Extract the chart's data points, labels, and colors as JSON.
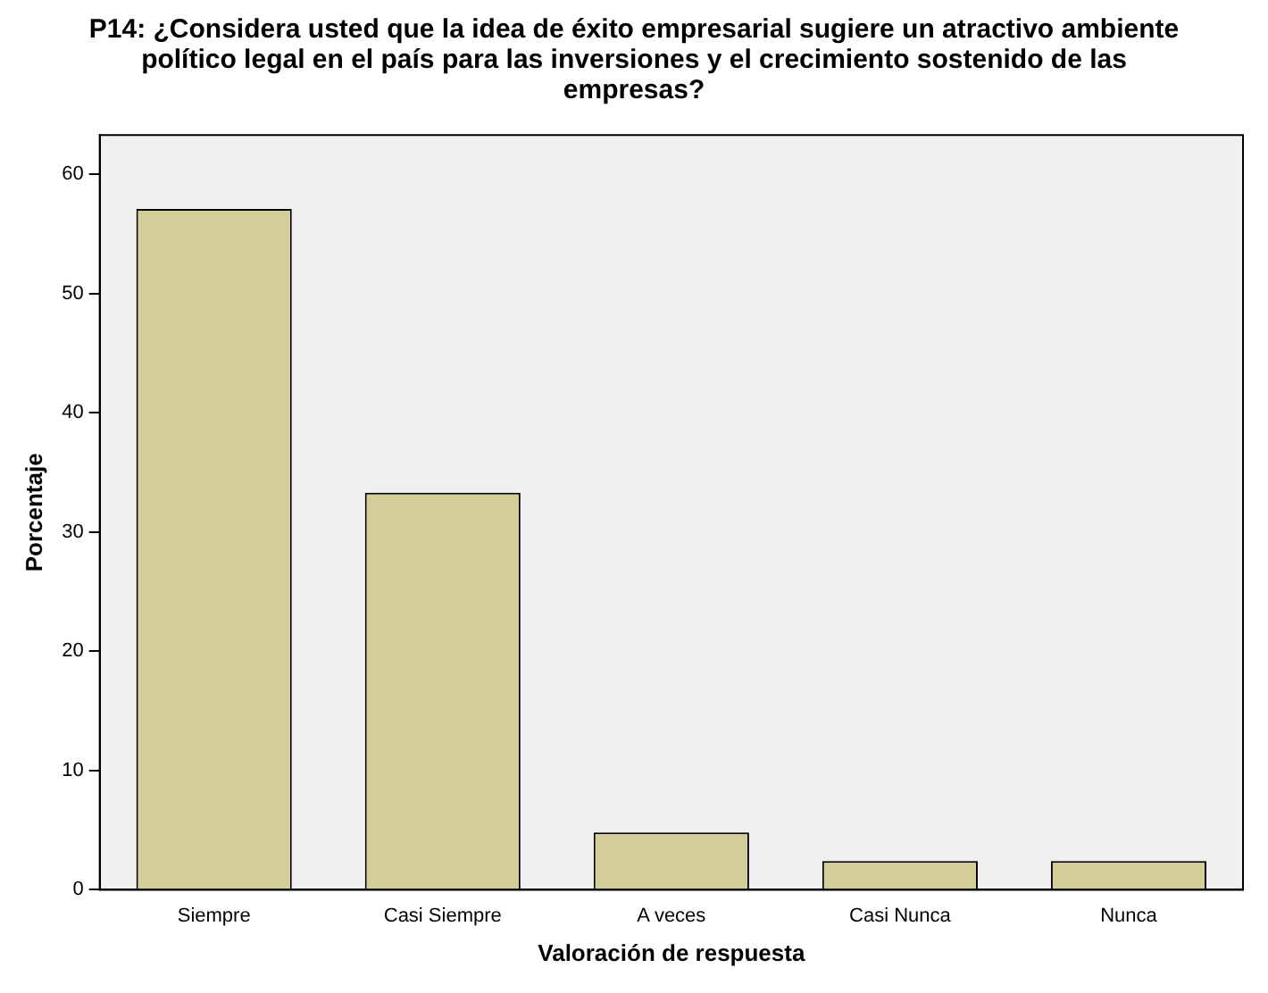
{
  "chart_data": {
    "type": "bar",
    "title": "P14: ¿Considera usted que la idea de éxito empresarial sugiere un atractivo ambiente político legal en el país para las inversiones y el crecimiento sostenido de las empresas?",
    "xlabel": "Valoración de respuesta",
    "ylabel": "Porcentaje",
    "categories": [
      "Siempre",
      "Casi Siempre",
      "A veces",
      "Casi Nunca",
      "Nunca"
    ],
    "values": [
      57.1,
      33.3,
      4.8,
      2.4,
      2.4
    ],
    "color": "#d3ce97",
    "ylim": [
      0,
      63.3
    ],
    "yticks": [
      0,
      10,
      20,
      30,
      40,
      50,
      60
    ],
    "grid": false,
    "legend": false
  }
}
